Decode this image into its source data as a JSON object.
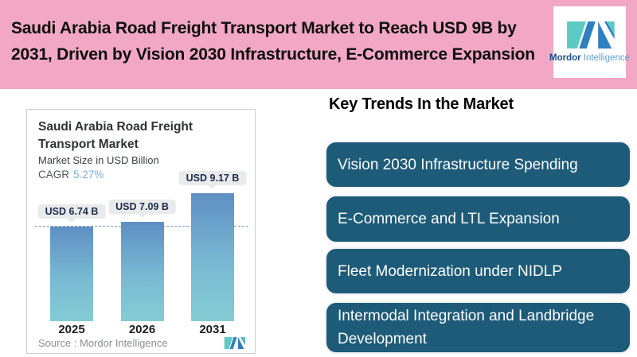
{
  "banner": {
    "title_line1": "Saudi Arabia Road Freight Transport Market to Reach USD 9B by",
    "title_line2": "2031, Driven by Vision 2030 Infrastructure, E-Commerce Expansion",
    "background_color": "#F2A8C5",
    "logo": {
      "word1": "Mordor",
      "word2": "Intelligence"
    }
  },
  "chart_card": {
    "title": "Saudi Arabia Road Freight Transport Market",
    "subtitle": "Market Size in USD Billion",
    "cagr_label": "CAGR",
    "cagr_value": "5.27%",
    "source": "Source :  Mordor Intelligence"
  },
  "chart_data": {
    "type": "bar",
    "categories": [
      "2025",
      "2026",
      "2031"
    ],
    "values": [
      6.74,
      7.09,
      9.17
    ],
    "data_labels": [
      "USD 6.74 B",
      "USD 7.09 B",
      "USD 9.17 B"
    ],
    "title": "Saudi Arabia Road Freight Transport Market",
    "subtitle": "Market Size in USD Billion",
    "cagr": "5.27%",
    "reference_line_value": 6.74,
    "ylim": [
      0,
      10
    ],
    "grid": false,
    "legend": "none",
    "bar_gradient": [
      "#5f8fc4",
      "#85ccd5"
    ],
    "reference_line_color": "#7b9cc7",
    "label_chip_color": "#e9eaec"
  },
  "key_trends": {
    "heading": "Key Trends In the Market",
    "box_color": "#1d5b79",
    "text_color": "#fdfdfd",
    "items": [
      {
        "label": "Vision 2030 Infrastructure Spending"
      },
      {
        "label": "E-Commerce and LTL Expansion"
      },
      {
        "label": "Fleet Modernization under NIDLP"
      },
      {
        "label": "Intermodal Integration and Landbridge Development"
      }
    ]
  },
  "brand_colors": {
    "logo_teal": "#5ecac6",
    "logo_blue": "#2f7fc1",
    "wordmark_navy": "#1a4f8d",
    "wordmark_light_blue": "#5ea0d6",
    "accent_blue": "#79b1d8"
  }
}
